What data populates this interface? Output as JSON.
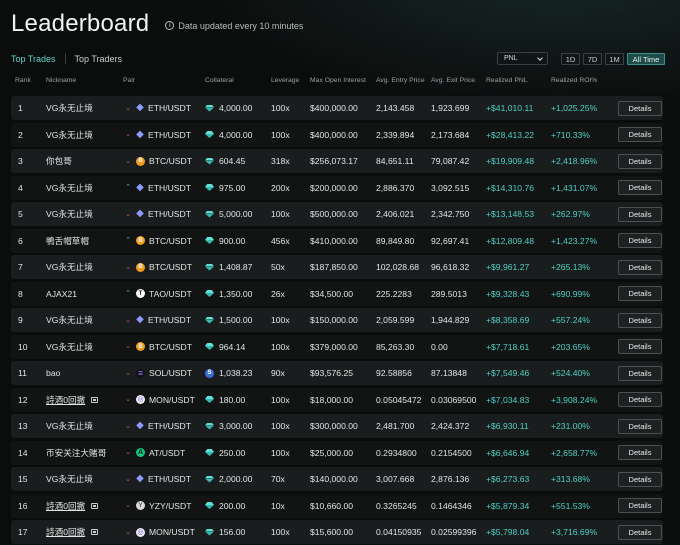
{
  "header": {
    "title": "Leaderboard",
    "update_note": "Data updated every 10 minutes",
    "info_icon": "i"
  },
  "tabs": [
    {
      "label": "Top Trades",
      "active": true
    },
    {
      "label": "Top Traders",
      "active": false
    }
  ],
  "metric_select": {
    "value": "PNL"
  },
  "time_ranges": [
    {
      "label": "1D",
      "active": false
    },
    {
      "label": "7D",
      "active": false
    },
    {
      "label": "1M",
      "active": false
    },
    {
      "label": "All Time",
      "active": true
    }
  ],
  "columns": {
    "rank": "Rank",
    "nickname": "Nickname",
    "pair": "Pair",
    "collateral": "Collateral",
    "leverage": "Leverage",
    "open_interest": "Max Open Interest",
    "entry": "Avg. Entry Price",
    "exit": "Avg. Exit Price",
    "pnl": "Realized PNL",
    "roi": "Realized ROI%"
  },
  "details_label": "Details",
  "coin_glyphs": {
    "eth": "◆",
    "btc": "B",
    "tao": "T",
    "sol": "≡",
    "mon": "◎",
    "at": "A",
    "yzy": "Y"
  },
  "colors": {
    "accent": "#5fd3c8",
    "positive": "#4fd1c5",
    "short": "#e0525f",
    "long": "#4ec9c0"
  },
  "rows": [
    {
      "rank": "1",
      "nickname": "VG永无止境",
      "link": false,
      "direction": "down",
      "coin": "eth",
      "pair": "ETH/USDT",
      "collateral_icon": "gem",
      "collateral": "4,000.00",
      "leverage": "100x",
      "open_interest": "$400,000.00",
      "entry": "2,143.458",
      "exit": "1,923.699",
      "pnl": "+$41,010.11",
      "roi": "+1,025.25%"
    },
    {
      "rank": "2",
      "nickname": "VG永无止境",
      "link": false,
      "direction": "down",
      "coin": "eth",
      "pair": "ETH/USDT",
      "collateral_icon": "gem",
      "collateral": "4,000.00",
      "leverage": "100x",
      "open_interest": "$400,000.00",
      "entry": "2,339.894",
      "exit": "2,173.684",
      "pnl": "+$28,413.22",
      "roi": "+710.33%"
    },
    {
      "rank": "3",
      "nickname": "你包哥",
      "link": false,
      "direction": "down",
      "coin": "btc",
      "pair": "BTC/USDT",
      "collateral_icon": "gem",
      "collateral": "604.45",
      "leverage": "318x",
      "open_interest": "$256,073.17",
      "entry": "84,651.11",
      "exit": "79,087.42",
      "pnl": "+$19,909.48",
      "roi": "+2,418.96%"
    },
    {
      "rank": "4",
      "nickname": "VG永无止境",
      "link": false,
      "direction": "up",
      "coin": "eth",
      "pair": "ETH/USDT",
      "collateral_icon": "gem",
      "collateral": "975.00",
      "leverage": "200x",
      "open_interest": "$200,000.00",
      "entry": "2,886.370",
      "exit": "3,092.515",
      "pnl": "+$14,310.76",
      "roi": "+1,431.07%"
    },
    {
      "rank": "5",
      "nickname": "VG永无止境",
      "link": false,
      "direction": "down",
      "coin": "eth",
      "pair": "ETH/USDT",
      "collateral_icon": "gem",
      "collateral": "5,000.00",
      "leverage": "100x",
      "open_interest": "$500,000.00",
      "entry": "2,406.021",
      "exit": "2,342.750",
      "pnl": "+$13,148.53",
      "roi": "+262.97%"
    },
    {
      "rank": "6",
      "nickname": "鴨舌帽草帽",
      "link": false,
      "direction": "up",
      "coin": "btc",
      "pair": "BTC/USDT",
      "collateral_icon": "gem",
      "collateral": "900.00",
      "leverage": "456x",
      "open_interest": "$410,000.00",
      "entry": "89,849.80",
      "exit": "92,697.41",
      "pnl": "+$12,809.48",
      "roi": "+1,423.27%"
    },
    {
      "rank": "7",
      "nickname": "VG永无止境",
      "link": false,
      "direction": "down",
      "coin": "btc",
      "pair": "BTC/USDT",
      "collateral_icon": "gem",
      "collateral": "1,408.87",
      "leverage": "50x",
      "open_interest": "$187,850.00",
      "entry": "102,028.68",
      "exit": "96,618.32",
      "pnl": "+$9,961.27",
      "roi": "+265.13%"
    },
    {
      "rank": "8",
      "nickname": "AJAX21",
      "link": false,
      "direction": "up",
      "coin": "tao",
      "pair": "TAO/USDT",
      "collateral_icon": "gem",
      "collateral": "1,350.00",
      "leverage": "26x",
      "open_interest": "$34,500.00",
      "entry": "225.2283",
      "exit": "289.5013",
      "pnl": "+$9,328.43",
      "roi": "+690.99%"
    },
    {
      "rank": "9",
      "nickname": "VG永无止境",
      "link": false,
      "direction": "down",
      "coin": "eth",
      "pair": "ETH/USDT",
      "collateral_icon": "gem",
      "collateral": "1,500.00",
      "leverage": "100x",
      "open_interest": "$150,000.00",
      "entry": "2,059.599",
      "exit": "1,944.829",
      "pnl": "+$8,358.69",
      "roi": "+557.24%"
    },
    {
      "rank": "10",
      "nickname": "VG永无止境",
      "link": false,
      "direction": "down",
      "coin": "btc",
      "pair": "BTC/USDT",
      "collateral_icon": "gem",
      "collateral": "964.14",
      "leverage": "100x",
      "open_interest": "$379,000.00",
      "entry": "85,263.30",
      "exit": "0.00",
      "pnl": "+$7,718.61",
      "roi": "+203.65%"
    },
    {
      "rank": "11",
      "nickname": "bao",
      "link": false,
      "direction": "down",
      "coin": "sol",
      "pair": "SOL/USDT",
      "collateral_icon": "sol",
      "collateral": "1,038.23",
      "leverage": "90x",
      "open_interest": "$93,576.25",
      "entry": "92.58856",
      "exit": "87.13848",
      "pnl": "+$7,549.46",
      "roi": "+524.40%"
    },
    {
      "rank": "12",
      "nickname": "詩酒0回撤",
      "link": true,
      "direction": "down",
      "coin": "mon",
      "pair": "MON/USDT",
      "collateral_icon": "gem",
      "collateral": "180.00",
      "leverage": "100x",
      "open_interest": "$18,000.00",
      "entry": "0.05045472",
      "exit": "0.03069500",
      "pnl": "+$7,034.83",
      "roi": "+3,908.24%"
    },
    {
      "rank": "13",
      "nickname": "VG永无止境",
      "link": false,
      "direction": "down",
      "coin": "eth",
      "pair": "ETH/USDT",
      "collateral_icon": "gem",
      "collateral": "3,000.00",
      "leverage": "100x",
      "open_interest": "$300,000.00",
      "entry": "2,481.700",
      "exit": "2,424.372",
      "pnl": "+$6,930.11",
      "roi": "+231.00%"
    },
    {
      "rank": "14",
      "nickname": "币安关注大赌哥",
      "link": false,
      "direction": "down",
      "coin": "at",
      "pair": "AT/USDT",
      "collateral_icon": "gem",
      "collateral": "250.00",
      "leverage": "100x",
      "open_interest": "$25,000.00",
      "entry": "0.2934800",
      "exit": "0.2154500",
      "pnl": "+$6,646.94",
      "roi": "+2,658.77%"
    },
    {
      "rank": "15",
      "nickname": "VG永无止境",
      "link": false,
      "direction": "down",
      "coin": "eth",
      "pair": "ETH/USDT",
      "collateral_icon": "gem",
      "collateral": "2,000.00",
      "leverage": "70x",
      "open_interest": "$140,000.00",
      "entry": "3,007.668",
      "exit": "2,876.136",
      "pnl": "+$6,273.63",
      "roi": "+313.68%"
    },
    {
      "rank": "16",
      "nickname": "詩酒0回撤",
      "link": true,
      "direction": "down",
      "coin": "yzy",
      "pair": "YZY/USDT",
      "collateral_icon": "gem",
      "collateral": "200.00",
      "leverage": "10x",
      "open_interest": "$10,660.00",
      "entry": "0.3265245",
      "exit": "0.1464346",
      "pnl": "+$5,879.34",
      "roi": "+551.53%"
    },
    {
      "rank": "17",
      "nickname": "詩酒0回撤",
      "link": true,
      "direction": "down",
      "coin": "mon",
      "pair": "MON/USDT",
      "collateral_icon": "gem",
      "collateral": "156.00",
      "leverage": "100x",
      "open_interest": "$15,600.00",
      "entry": "0.04150935",
      "exit": "0.02599396",
      "pnl": "+$5,798.04",
      "roi": "+3,716.69%"
    }
  ]
}
